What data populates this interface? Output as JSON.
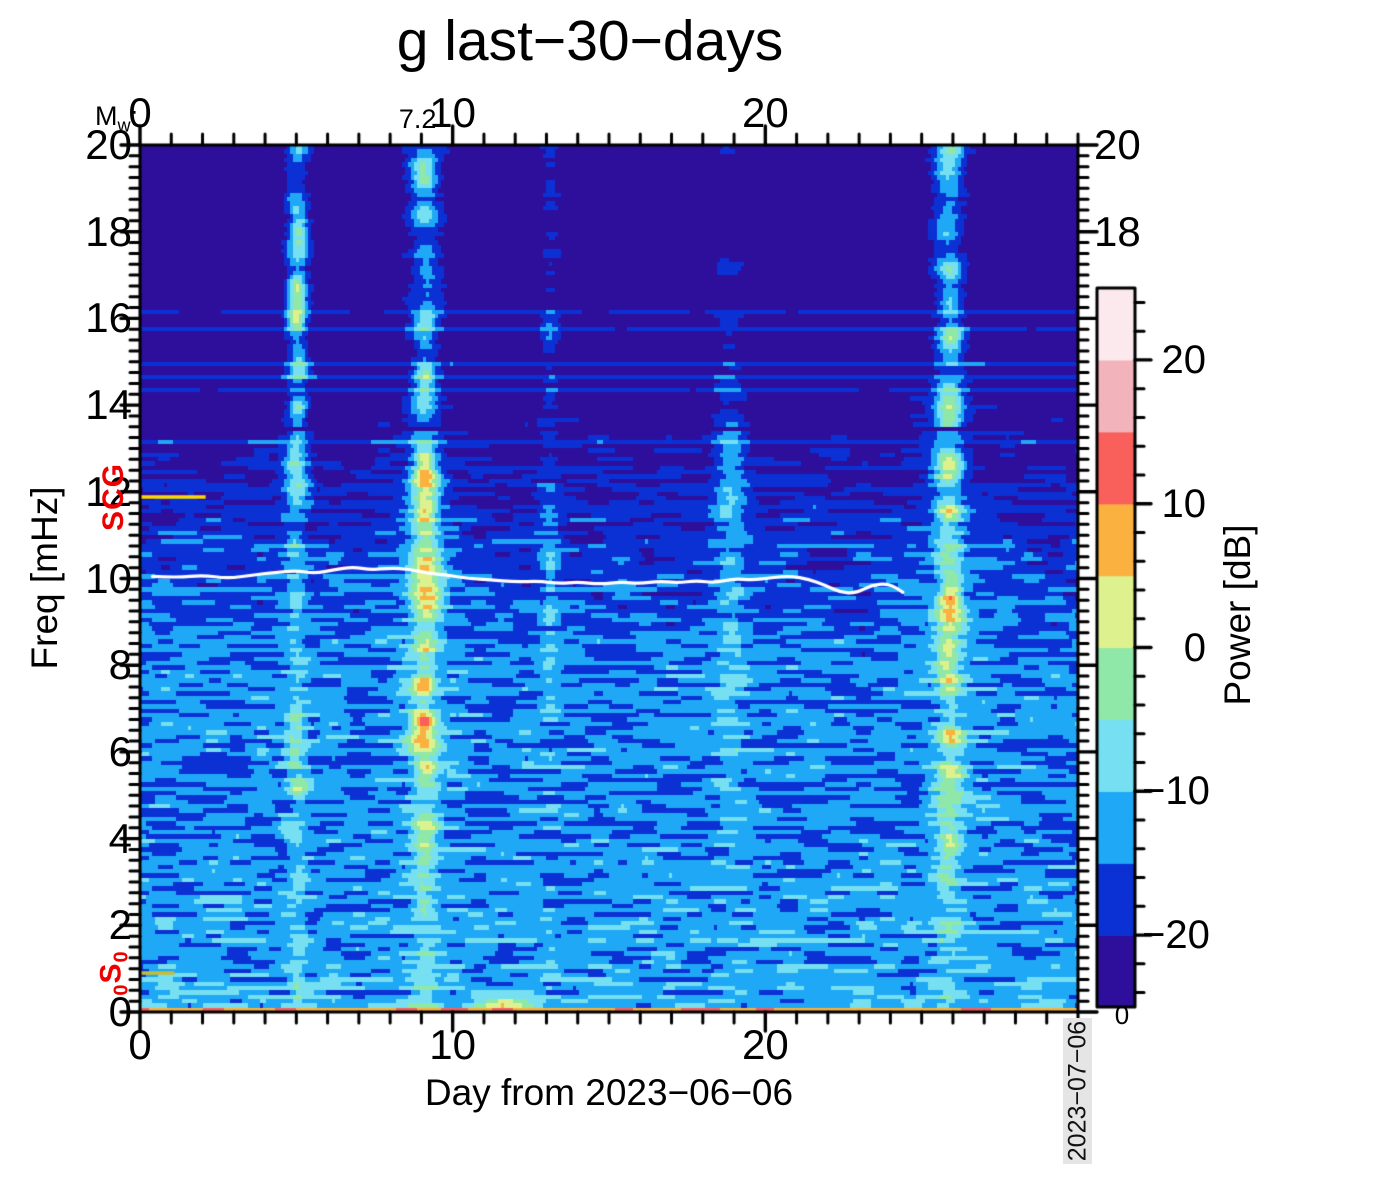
{
  "chart_data": {
    "type": "spectrogram-heatmap",
    "title": "g last−30−days",
    "xlabel": "Day from 2023−06−06",
    "ylabel": "Freq [mHz]",
    "x_range": [
      0,
      30
    ],
    "y_range": [
      0,
      20
    ],
    "x_axis": {
      "major_ticks": [
        {
          "v": 0,
          "t": "0"
        },
        {
          "v": 10,
          "t": "10"
        },
        {
          "v": 20,
          "t": "20"
        }
      ],
      "minor_step": 1
    },
    "y_axis": {
      "major_ticks": [
        {
          "v": 20,
          "t": "20"
        },
        {
          "v": 18,
          "t": "18"
        },
        {
          "v": 16,
          "t": "16"
        },
        {
          "v": 14,
          "t": "14"
        },
        {
          "v": 12,
          "t": "12"
        },
        {
          "v": 10,
          "t": "10"
        },
        {
          "v": 8,
          "t": "8"
        },
        {
          "v": 6,
          "t": "6"
        },
        {
          "v": 4,
          "t": "4"
        },
        {
          "v": 2,
          "t": "2"
        },
        {
          "v": 0,
          "t": "0"
        }
      ],
      "minor_step": 0.25,
      "right_labels": [
        {
          "v": 20,
          "t": "20"
        },
        {
          "v": 18,
          "t": "18"
        }
      ]
    },
    "top_axis": {
      "label_m": "M",
      "label_sub": "w",
      "label_colon": ":",
      "annotations": [
        {
          "day": 8.88,
          "text": "7.2"
        }
      ]
    },
    "colorbar": {
      "label": "Power [dB]",
      "min": -25,
      "max": 25,
      "segment_db": 5,
      "palette": [
        "#2d0f9b",
        "#0b31d5",
        "#1fa8f5",
        "#76dff1",
        "#8fe8a8",
        "#ddf18e",
        "#fbb140",
        "#f95f5b",
        "#f3b3ba",
        "#fbe9ee"
      ],
      "major_ticks": [
        {
          "v": 20,
          "t": "20"
        },
        {
          "v": 10,
          "t": "10"
        },
        {
          "v": 0,
          "t": "0"
        },
        {
          "v": -10,
          "t": "−10"
        },
        {
          "v": -20,
          "t": "−20"
        }
      ],
      "minor_step": 2,
      "bottom_label": "0"
    },
    "events": [
      {
        "day": 5.0,
        "intensity": "moderate",
        "peak_db": 2
      },
      {
        "day": 9.1,
        "intensity": "strong",
        "peak_db": 13,
        "mw": "7.2"
      },
      {
        "day": 13.1,
        "intensity": "faint",
        "peak_db": -11
      },
      {
        "day": 18.9,
        "intensity": "faint",
        "peak_db": -6
      },
      {
        "day": 25.9,
        "intensity": "strong",
        "peak_db": 11
      }
    ],
    "mode_markers": [
      {
        "name": "SCG",
        "freq_mhz": 11.88,
        "parts": [
          {
            "text": "SCG",
            "sub": false
          }
        ],
        "line_color": "#fbdb00",
        "line_len_days": 2.1,
        "label_color": "#ee0000"
      },
      {
        "name": "0S0",
        "freq_mhz": 0.9,
        "parts": [
          {
            "text": "0",
            "sub": true
          },
          {
            "text": "S",
            "sub": false
          },
          {
            "text": "0",
            "sub": true
          }
        ],
        "line_color": "#c9bc33",
        "line_len_days": 1.1,
        "label_color": "#ee0000"
      }
    ],
    "trace": {
      "color": "#ffffff",
      "points": [
        [
          0.4,
          10.05
        ],
        [
          1.2,
          10.02
        ],
        [
          2.0,
          10.08
        ],
        [
          2.8,
          10.0
        ],
        [
          3.6,
          10.08
        ],
        [
          4.3,
          10.14
        ],
        [
          5.0,
          10.18
        ],
        [
          5.6,
          10.12
        ],
        [
          6.2,
          10.2
        ],
        [
          6.8,
          10.27
        ],
        [
          7.4,
          10.2
        ],
        [
          8.0,
          10.24
        ],
        [
          8.6,
          10.22
        ],
        [
          9.2,
          10.12
        ],
        [
          9.8,
          10.08
        ],
        [
          10.5,
          10.0
        ],
        [
          11.2,
          9.97
        ],
        [
          12.0,
          9.92
        ],
        [
          12.8,
          9.94
        ],
        [
          13.4,
          9.88
        ],
        [
          14.0,
          9.92
        ],
        [
          14.7,
          9.87
        ],
        [
          15.4,
          9.92
        ],
        [
          16.0,
          9.88
        ],
        [
          16.6,
          9.94
        ],
        [
          17.2,
          9.9
        ],
        [
          17.8,
          9.95
        ],
        [
          18.4,
          9.9
        ],
        [
          19.0,
          10.0
        ],
        [
          19.6,
          9.96
        ],
        [
          20.2,
          10.02
        ],
        [
          20.8,
          10.06
        ],
        [
          21.4,
          9.98
        ],
        [
          21.9,
          9.85
        ],
        [
          22.4,
          9.68
        ],
        [
          22.9,
          9.66
        ],
        [
          23.4,
          9.85
        ],
        [
          23.9,
          9.88
        ],
        [
          24.2,
          9.78
        ],
        [
          24.4,
          9.68
        ]
      ]
    },
    "background": {
      "noise_floor_high_freq_db": -23.5,
      "noise_floor_low_freq_db": -13,
      "dark_band_mhz": 13.45,
      "bottom_edge_db": 10
    },
    "stamp": "2023−07−06"
  }
}
